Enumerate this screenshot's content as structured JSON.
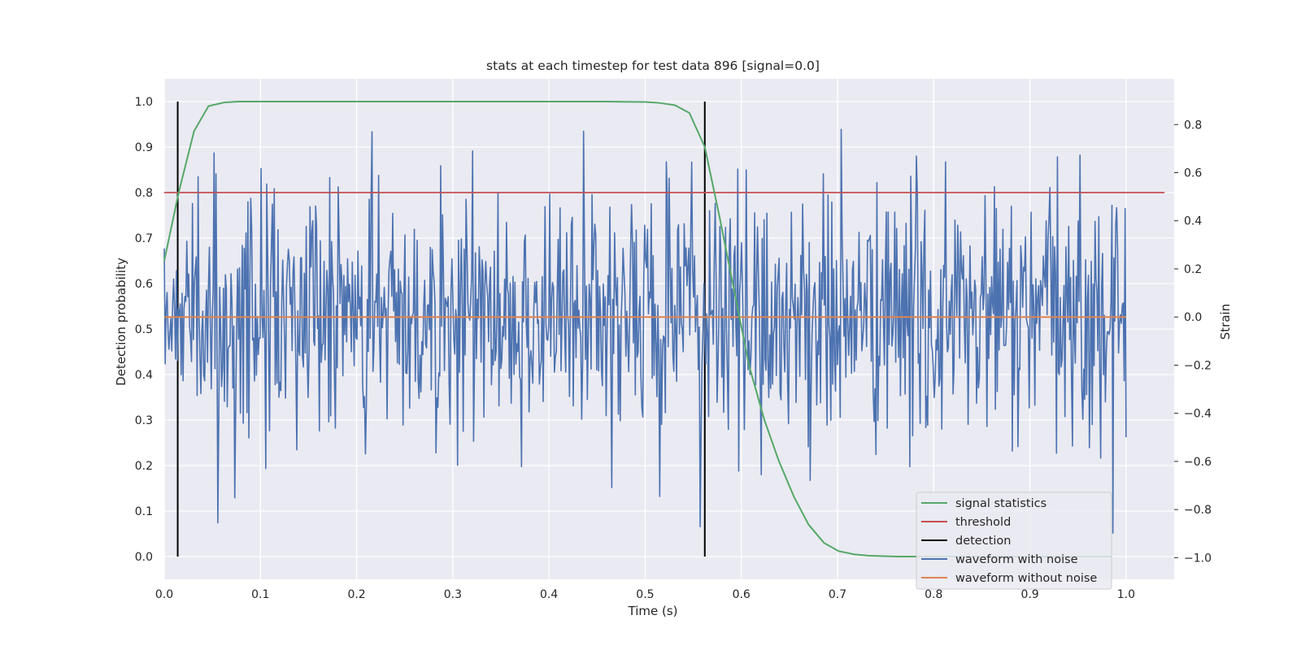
{
  "chart_data": {
    "type": "line",
    "title": "stats at each timestep for test data 896 [signal=0.0]",
    "xlabel": "Time (s)",
    "ylabel": "Detection probability",
    "y2label": "Strain",
    "xlim": [
      0.0,
      1.05
    ],
    "ylim": [
      -0.05,
      1.05
    ],
    "y2lim": [
      -1.09,
      0.99
    ],
    "x_ticks": [
      "0.0",
      "0.1",
      "0.2",
      "0.3",
      "0.4",
      "0.5",
      "0.6",
      "0.7",
      "0.8",
      "0.9",
      "1.0"
    ],
    "y_ticks": [
      "0.0",
      "0.1",
      "0.2",
      "0.3",
      "0.4",
      "0.5",
      "0.6",
      "0.7",
      "0.8",
      "0.9",
      "1.0"
    ],
    "y2_ticks": [
      "−1.0",
      "−0.8",
      "−0.6",
      "−0.4",
      "−0.2",
      "0.0",
      "0.2",
      "0.4",
      "0.6",
      "0.8"
    ],
    "grid": true,
    "legend_position": "lower-right",
    "colors": {
      "signal_statistics": "#55a868",
      "threshold": "#c44e52",
      "detection": "#000000",
      "waveform_with_noise": "#4c72b0",
      "waveform_without_noise": "#dd8452",
      "plot_background": "#eaeaf2",
      "grid": "#ffffff"
    },
    "series": [
      {
        "name": "signal statistics",
        "axis": "left",
        "x": [
          0.0,
          0.015,
          0.031,
          0.046,
          0.062,
          0.077,
          0.1,
          0.2,
          0.3,
          0.4,
          0.46,
          0.5,
          0.515,
          0.531,
          0.546,
          0.562,
          0.577,
          0.593,
          0.608,
          0.624,
          0.639,
          0.655,
          0.67,
          0.686,
          0.701,
          0.717,
          0.732,
          0.748,
          0.763,
          0.8,
          0.9,
          0.985
        ],
        "y": [
          0.65,
          0.8,
          0.935,
          0.99,
          0.998,
          1.0,
          1.0,
          1.0,
          1.0,
          1.0,
          1.0,
          0.999,
          0.997,
          0.992,
          0.975,
          0.9,
          0.75,
          0.58,
          0.42,
          0.3,
          0.21,
          0.13,
          0.07,
          0.03,
          0.012,
          0.005,
          0.002,
          0.001,
          0.0,
          0.0,
          0.0,
          0.0
        ]
      },
      {
        "name": "threshold",
        "axis": "left",
        "x": [
          0.0,
          1.04
        ],
        "y": [
          0.8,
          0.8
        ]
      },
      {
        "name": "detection",
        "axis": "left",
        "x": [
          0.014,
          0.562
        ],
        "y": [
          1.0,
          1.0
        ]
      },
      {
        "name": "waveform with noise",
        "axis": "right",
        "x_range": [
          0.0,
          1.0
        ],
        "points": 1024,
        "y_range_observed": [
          -0.98,
          0.78
        ]
      },
      {
        "name": "waveform without noise",
        "axis": "right",
        "x": [
          0.0,
          1.0
        ],
        "y": [
          0.0,
          0.0
        ]
      }
    ]
  }
}
